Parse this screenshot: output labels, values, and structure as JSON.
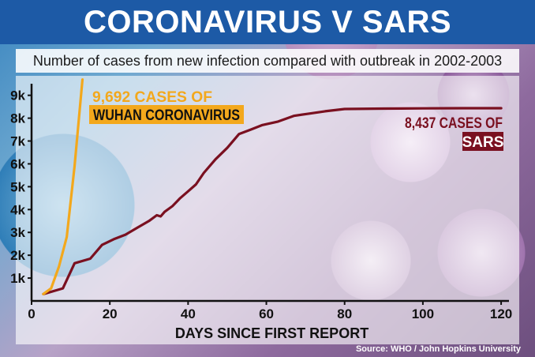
{
  "title": "CORONAVIRUS V SARS",
  "subtitle": "Number of cases from new infection compared with outbreak in 2002-2003",
  "source": "Source: WHO / John Hopkins University",
  "colors": {
    "title_band": "#1d5aa6",
    "coronavirus": "#f3a81c",
    "sars": "#7a1020",
    "axis": "#111111"
  },
  "chart_data": {
    "type": "line",
    "xlabel": "DAYS SINCE FIRST REPORT",
    "ylabel": "",
    "xlim": [
      0,
      122
    ],
    "ylim": [
      0,
      9300
    ],
    "x_ticks": [
      0,
      20,
      40,
      60,
      80,
      100,
      120
    ],
    "x_tick_labels": [
      "0",
      "20",
      "40",
      "60",
      "80",
      "100",
      "120"
    ],
    "y_ticks": [
      1000,
      2000,
      3000,
      4000,
      5000,
      6000,
      7000,
      8000,
      9000
    ],
    "y_tick_labels": [
      "1k",
      "2k",
      "3k",
      "4k",
      "5k",
      "6k",
      "7k",
      "8k",
      "9k"
    ],
    "grid": false,
    "series": [
      {
        "name": "WUHAN CORONAVIRUS",
        "x": [
          3,
          5,
          7,
          9,
          11,
          13
        ],
        "y": [
          300,
          550,
          1500,
          2800,
          5900,
          9692
        ]
      },
      {
        "name": "SARS",
        "x": [
          3,
          8,
          11,
          15,
          18,
          21,
          24,
          27,
          30,
          32,
          33,
          34,
          36,
          38,
          40,
          42,
          44,
          47,
          50,
          53,
          56,
          59,
          63,
          67,
          71,
          75,
          80,
          90,
          100,
          110,
          120
        ],
        "y": [
          300,
          550,
          1650,
          1850,
          2450,
          2700,
          2900,
          3200,
          3500,
          3750,
          3700,
          3900,
          4150,
          4500,
          4800,
          5100,
          5600,
          6200,
          6700,
          7300,
          7500,
          7700,
          7850,
          8100,
          8200,
          8300,
          8400,
          8420,
          8430,
          8437,
          8437
        ]
      }
    ],
    "annotations": [
      {
        "line1": "9,692 CASES OF",
        "line2": "WUHAN CORONAVIRUS",
        "series": "WUHAN CORONAVIRUS"
      },
      {
        "line1": "8,437 CASES OF",
        "line2": "SARS",
        "series": "SARS"
      }
    ]
  }
}
